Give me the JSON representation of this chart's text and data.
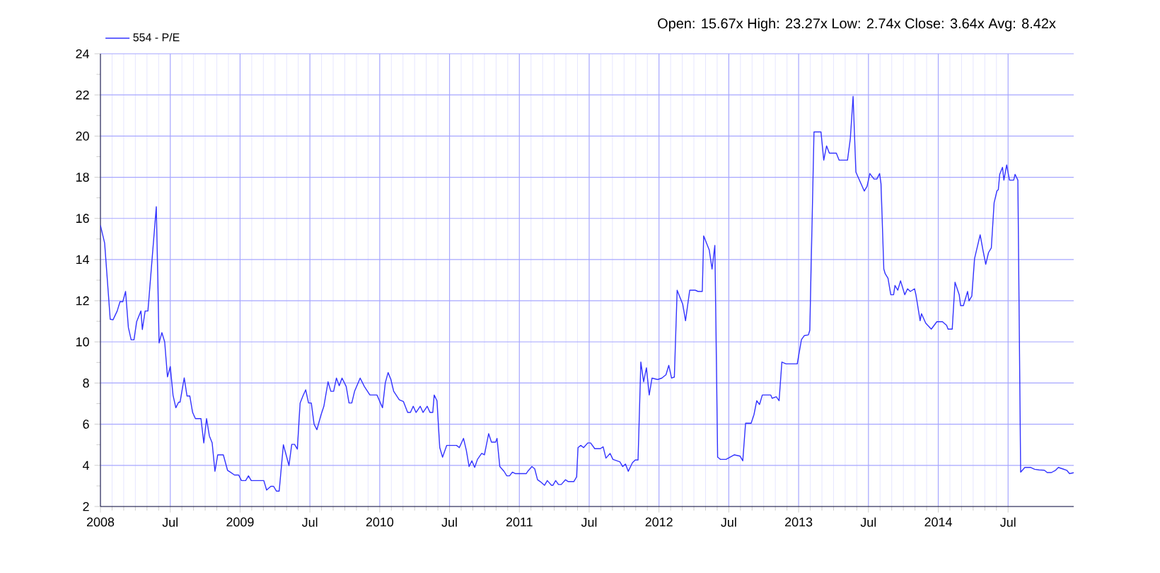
{
  "chart_data": {
    "type": "line",
    "annotations": [
      "Open: 15.67x   High: 23.27x   Low: 2.74x   Close: 3.64x   Avg: 8.42x"
    ],
    "x": [
      2008.0,
      2008.03,
      2008.07,
      2008.09,
      2008.12,
      2008.14,
      2008.16,
      2008.18,
      2008.2,
      2008.22,
      2008.24,
      2008.26,
      2008.29,
      2008.3,
      2008.32,
      2008.34,
      2008.4,
      2008.42,
      2008.44,
      2008.46,
      2008.48,
      2008.5,
      2008.52,
      2008.54,
      2008.56,
      2008.57,
      2008.6,
      2008.62,
      2008.64,
      2008.66,
      2008.68,
      2008.72,
      2008.74,
      2008.76,
      2008.78,
      2008.8,
      2008.82,
      2008.84,
      2008.88,
      2008.91,
      2008.93,
      2008.96,
      2008.99,
      2009.01,
      2009.04,
      2009.06,
      2009.08,
      2009.17,
      2009.19,
      2009.22,
      2009.24,
      2009.26,
      2009.28,
      2009.31,
      2009.33,
      2009.35,
      2009.37,
      2009.39,
      2009.41,
      2009.43,
      2009.45,
      2009.47,
      2009.49,
      2009.51,
      2009.53,
      2009.55,
      2009.58,
      2009.6,
      2009.63,
      2009.65,
      2009.67,
      2009.69,
      2009.71,
      2009.73,
      2009.76,
      2009.78,
      2009.8,
      2009.82,
      2009.86,
      2009.89,
      2009.93,
      2009.98,
      2010.02,
      2010.04,
      2010.06,
      2010.08,
      2010.1,
      2010.14,
      2010.17,
      2010.2,
      2010.22,
      2010.24,
      2010.26,
      2010.29,
      2010.31,
      2010.34,
      2010.36,
      2010.38,
      2010.39,
      2010.41,
      2010.43,
      2010.45,
      2010.48,
      2010.55,
      2010.57,
      2010.6,
      2010.62,
      2010.64,
      2010.66,
      2010.68,
      2010.7,
      2010.73,
      2010.75,
      2010.76,
      2010.78,
      2010.8,
      2010.83,
      2010.84,
      2010.86,
      2010.89,
      2010.91,
      2010.93,
      2010.95,
      2010.97,
      2011.05,
      2011.06,
      2011.09,
      2011.11,
      2011.13,
      2011.15,
      2011.18,
      2011.2,
      2011.23,
      2011.24,
      2011.26,
      2011.28,
      2011.3,
      2011.33,
      2011.35,
      2011.39,
      2011.41,
      2011.42,
      2011.44,
      2011.46,
      2011.49,
      2011.51,
      2011.54,
      2011.58,
      2011.6,
      2011.62,
      2011.65,
      2011.67,
      2011.72,
      2011.74,
      2011.76,
      2011.78,
      2011.81,
      2011.83,
      2011.85,
      2011.87,
      2011.89,
      2011.91,
      2011.93,
      2011.95,
      2011.99,
      2012.02,
      2012.05,
      2012.07,
      2012.09,
      2012.11,
      2012.13,
      2012.15,
      2012.17,
      2012.19,
      2012.22,
      2012.26,
      2012.28,
      2012.31,
      2012.32,
      2012.36,
      2012.38,
      2012.4,
      2012.42,
      2012.44,
      2012.48,
      2012.51,
      2012.54,
      2012.58,
      2012.6,
      2012.62,
      2012.66,
      2012.68,
      2012.7,
      2012.72,
      2012.74,
      2012.8,
      2012.81,
      2012.84,
      2012.86,
      2012.88,
      2012.91,
      2012.99,
      2013.02,
      2013.04,
      2013.07,
      2013.08,
      2013.11,
      2013.16,
      2013.18,
      2013.2,
      2013.22,
      2013.27,
      2013.29,
      2013.35,
      2013.37,
      2013.39,
      2013.41,
      2013.44,
      2013.47,
      2013.49,
      2013.51,
      2013.54,
      2013.56,
      2013.58,
      2013.59,
      2013.61,
      2013.62,
      2013.64,
      2013.66,
      2013.68,
      2013.69,
      2013.71,
      2013.73,
      2013.76,
      2013.78,
      2013.8,
      2013.83,
      2013.84,
      2013.87,
      2013.88,
      2013.91,
      2013.95,
      2013.97,
      2013.99,
      2014.03,
      2014.06,
      2014.07,
      2014.1,
      2014.12,
      2014.15,
      2014.16,
      2014.18,
      2014.21,
      2014.22,
      2014.24,
      2014.26,
      2014.3,
      2014.32,
      2014.34,
      2014.36,
      2014.38,
      2014.4,
      2014.42,
      2014.43,
      2014.44,
      2014.46,
      2014.47,
      2014.49,
      2014.51,
      2014.54,
      2014.55,
      2014.57,
      2014.59,
      2014.62,
      2014.66,
      2014.69,
      2014.72,
      2014.76,
      2014.78,
      2014.81,
      2014.84,
      2014.86,
      2014.89,
      2014.92,
      2014.94,
      2014.97
    ],
    "series": [
      {
        "name": "554 - P/E",
        "color": "#3333ff",
        "values": [
          15.66,
          14.8,
          11.1,
          11.07,
          11.5,
          11.95,
          11.95,
          12.45,
          10.7,
          10.1,
          10.1,
          11.0,
          11.5,
          10.6,
          11.5,
          11.5,
          16.57,
          9.95,
          10.45,
          10.0,
          8.3,
          8.8,
          7.4,
          6.8,
          7.07,
          7.07,
          8.25,
          7.37,
          7.37,
          6.57,
          6.27,
          6.27,
          5.09,
          6.27,
          5.43,
          5.09,
          3.71,
          4.51,
          4.51,
          3.76,
          3.67,
          3.53,
          3.53,
          3.26,
          3.26,
          3.49,
          3.26,
          3.26,
          2.8,
          2.98,
          2.98,
          2.75,
          2.75,
          5.0,
          4.5,
          3.99,
          5.02,
          5.02,
          4.79,
          7.03,
          7.37,
          7.67,
          7.03,
          7.03,
          6.0,
          5.73,
          6.46,
          6.87,
          8.06,
          7.6,
          7.6,
          8.24,
          7.87,
          8.24,
          7.83,
          7.03,
          7.03,
          7.6,
          8.24,
          7.83,
          7.42,
          7.42,
          6.8,
          8.01,
          8.51,
          8.17,
          7.6,
          7.19,
          7.1,
          6.57,
          6.57,
          6.87,
          6.57,
          6.87,
          6.57,
          6.87,
          6.57,
          6.57,
          7.42,
          7.14,
          4.86,
          4.4,
          4.97,
          4.97,
          4.86,
          5.31,
          4.74,
          3.94,
          4.22,
          3.9,
          4.29,
          4.58,
          4.51,
          4.86,
          5.54,
          5.13,
          5.13,
          5.31,
          3.94,
          3.71,
          3.49,
          3.49,
          3.67,
          3.6,
          3.6,
          3.71,
          3.94,
          3.83,
          3.3,
          3.21,
          3.03,
          3.26,
          3.03,
          3.03,
          3.26,
          3.07,
          3.07,
          3.3,
          3.21,
          3.21,
          3.44,
          4.86,
          4.97,
          4.86,
          5.09,
          5.09,
          4.81,
          4.81,
          4.9,
          4.35,
          4.58,
          4.29,
          4.17,
          3.94,
          4.06,
          3.71,
          4.13,
          4.26,
          4.26,
          9.02,
          8.06,
          8.74,
          7.42,
          8.24,
          8.17,
          8.24,
          8.4,
          8.86,
          8.24,
          8.29,
          12.51,
          12.17,
          11.83,
          11.03,
          12.51,
          12.51,
          12.45,
          12.45,
          15.15,
          14.46,
          13.54,
          14.69,
          4.4,
          4.29,
          4.29,
          4.4,
          4.51,
          4.45,
          4.22,
          6.05,
          6.05,
          6.46,
          7.14,
          6.96,
          7.42,
          7.42,
          7.26,
          7.33,
          7.14,
          9.02,
          8.93,
          8.93,
          10.11,
          10.3,
          10.34,
          10.57,
          20.2,
          20.2,
          18.83,
          19.52,
          19.17,
          19.17,
          18.83,
          18.83,
          19.86,
          21.93,
          18.25,
          17.79,
          17.33,
          17.56,
          18.18,
          17.91,
          17.91,
          18.18,
          17.68,
          13.54,
          13.31,
          13.09,
          12.29,
          12.29,
          12.74,
          12.51,
          12.97,
          12.29,
          12.58,
          12.45,
          12.58,
          12.29,
          11.03,
          11.37,
          10.91,
          10.62,
          10.8,
          10.98,
          10.98,
          10.8,
          10.62,
          10.62,
          12.9,
          12.29,
          11.76,
          11.76,
          12.45,
          11.99,
          12.22,
          14.05,
          15.2,
          14.46,
          13.77,
          14.34,
          14.57,
          16.76,
          17.33,
          17.4,
          18.14,
          18.48,
          17.86,
          18.6,
          17.86,
          17.86,
          18.14,
          17.86,
          3.67,
          3.9,
          3.9,
          3.81,
          3.78,
          3.76,
          3.65,
          3.65,
          3.76,
          3.9,
          3.83,
          3.76,
          3.6,
          3.64
        ]
      }
    ],
    "xlim": [
      2008,
      2014.97
    ],
    "xticks": [
      {
        "value": 2008,
        "label": "2008"
      },
      {
        "value": 2008.5,
        "label": "Jul"
      },
      {
        "value": 2009,
        "label": "2009"
      },
      {
        "value": 2009.5,
        "label": "Jul"
      },
      {
        "value": 2010,
        "label": "2010"
      },
      {
        "value": 2010.5,
        "label": "Jul"
      },
      {
        "value": 2011,
        "label": "2011"
      },
      {
        "value": 2011.5,
        "label": "Jul"
      },
      {
        "value": 2012,
        "label": "2012"
      },
      {
        "value": 2012.5,
        "label": "Jul"
      },
      {
        "value": 2013,
        "label": "2013"
      },
      {
        "value": 2013.5,
        "label": "Jul"
      },
      {
        "value": 2014,
        "label": "2014"
      },
      {
        "value": 2014.5,
        "label": "Jul"
      }
    ],
    "ylim": [
      2,
      24
    ],
    "yticks": [
      2,
      4,
      6,
      8,
      10,
      12,
      14,
      16,
      18,
      20,
      22,
      24
    ],
    "grid": true,
    "legend": "top left",
    "marker": "none",
    "line_style": "solid"
  }
}
